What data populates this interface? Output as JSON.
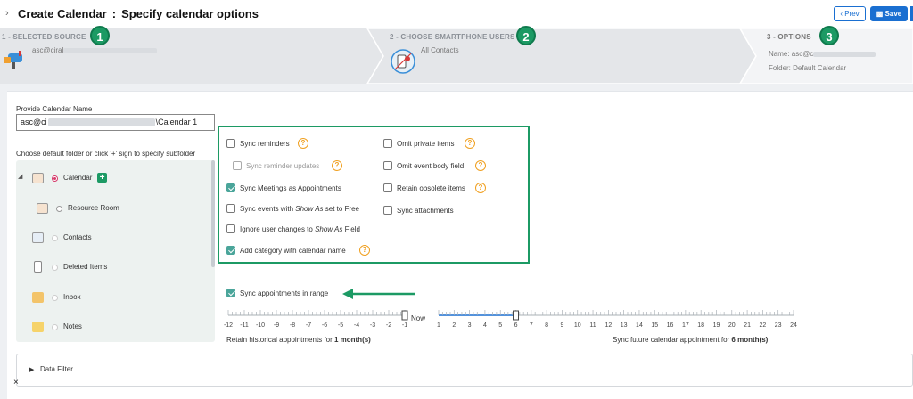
{
  "header": {
    "title": "Create Calendar",
    "separator": ":",
    "subtitle": "Specify calendar options",
    "prev_label": "‹ Prev",
    "save_label": "Save"
  },
  "steps": [
    {
      "number": "1",
      "label": "1 - SELECTED SOURCE",
      "detail": "asc@ciral"
    },
    {
      "number": "2",
      "label": "2 - CHOOSE SMARTPHONE USERS",
      "detail": "All Contacts"
    },
    {
      "number": "3",
      "label": "3 - OPTIONS",
      "detail": "Name: asc@c",
      "detail2": "Folder: Default Calendar"
    }
  ],
  "form": {
    "name_label": "Provide Calendar Name",
    "name_value_prefix": "asc@ci",
    "name_value_suffix": "\\Calendar 1",
    "folder_instruction": "Choose default folder or click '+' sign to specify subfolder"
  },
  "folders": [
    {
      "label": "Calendar",
      "selected": true,
      "icon": "calendar-icon"
    },
    {
      "label": "Resource Room",
      "selected": false,
      "icon": "calendar-icon"
    },
    {
      "label": "Contacts",
      "selected": false,
      "icon": "contact-card-icon"
    },
    {
      "label": "Deleted Items",
      "selected": false,
      "icon": "trash-icon"
    },
    {
      "label": "Inbox",
      "selected": false,
      "icon": "inbox-folder-icon"
    },
    {
      "label": "Notes",
      "selected": false,
      "icon": "note-icon"
    }
  ],
  "options_left": [
    {
      "label": "Sync reminders",
      "checked": false,
      "help": true
    },
    {
      "label": "Sync reminder updates",
      "checked": false,
      "help": true,
      "disabled": true
    },
    {
      "label": "Sync Meetings as Appointments",
      "checked": true,
      "help": false
    },
    {
      "label_parts": [
        "Sync events with ",
        "Show As",
        " set to Free"
      ],
      "checked": false,
      "help": false
    },
    {
      "label_parts": [
        "Ignore user changes to ",
        "Show As",
        " Field"
      ],
      "checked": false,
      "help": false
    },
    {
      "label": "Add category with calendar name",
      "checked": true,
      "help": true
    }
  ],
  "options_right": [
    {
      "label": "Omit private items",
      "checked": false,
      "help": true
    },
    {
      "label": "Omit event body field",
      "checked": false,
      "help": true
    },
    {
      "label": "Retain obsolete items",
      "checked": false,
      "help": true
    },
    {
      "label": "Sync attachments",
      "checked": false,
      "help": false
    }
  ],
  "range": {
    "sync_label": "Sync appointments in range",
    "sync_checked": true,
    "past_ticks": [
      "-12",
      "-11",
      "-10",
      "-9",
      "-8",
      "-7",
      "-6",
      "-5",
      "-4",
      "-3",
      "-2",
      "-1"
    ],
    "now_label": "Now",
    "future_ticks": [
      "1",
      "2",
      "3",
      "4",
      "5",
      "6",
      "7",
      "8",
      "9",
      "10",
      "11",
      "12",
      "13",
      "14",
      "15",
      "16",
      "17",
      "18",
      "19",
      "20",
      "21",
      "22",
      "23",
      "24"
    ],
    "past_months": 1,
    "future_months": 6,
    "past_text": "Retain historical appointments for ",
    "past_value": "1 month(s)",
    "future_text": "Sync future calendar appointment for ",
    "future_value": "6 month(s)"
  },
  "filter": {
    "label": "Data Filter",
    "close": "×"
  },
  "colors": {
    "accent": "#1c9a64",
    "primary": "#1a6fd1",
    "check": "#4aa59a",
    "help": "#f0a020"
  }
}
